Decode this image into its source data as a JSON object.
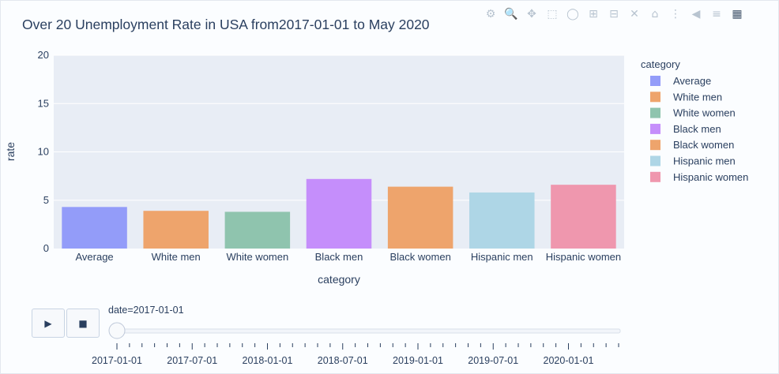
{
  "chart_data": {
    "type": "bar",
    "title": "Over 20 Unemployment Rate in USA from2017-01-01 to May 2020",
    "xlabel": "category",
    "ylabel": "rate",
    "ylim": [
      0,
      20
    ],
    "yticks": [
      "0",
      "5",
      "10",
      "15",
      "20"
    ],
    "categories": [
      "Average",
      "White men",
      "White women",
      "Black men",
      "Black women",
      "Hispanic men",
      "Hispanic women"
    ],
    "values": [
      4.3,
      3.9,
      3.8,
      7.2,
      6.4,
      5.8,
      6.6
    ],
    "colors": [
      "#939cf9",
      "#eea46c",
      "#8fc4ae",
      "#c58efb",
      "#eea46c",
      "#aed6e6",
      "#ef97ae"
    ],
    "legend": {
      "title": "category",
      "placement": "right",
      "items": [
        "Average",
        "White men",
        "White women",
        "Black men",
        "Black women",
        "Hispanic men",
        "Hispanic women"
      ]
    },
    "grid": true
  },
  "slider": {
    "current_label": "date=2017-01-01",
    "tick_labels": [
      "2017-01-01",
      "2017-07-01",
      "2018-01-01",
      "2018-07-01",
      "2019-01-01",
      "2019-07-01",
      "2020-01-01"
    ],
    "position": 0
  },
  "controls": {
    "play_icon": "play-icon",
    "stop_icon": "stop-icon"
  },
  "toolbar": {
    "icons": [
      "camera-icon",
      "zoom-icon",
      "pan-icon",
      "box-select-icon",
      "lasso-select-icon",
      "zoom-in-icon",
      "zoom-out-icon",
      "autoscale-icon",
      "reset-axes-icon",
      "spike-lines-icon",
      "hover-closest-icon",
      "hover-compare-icon",
      "plotly-logo-icon"
    ]
  }
}
